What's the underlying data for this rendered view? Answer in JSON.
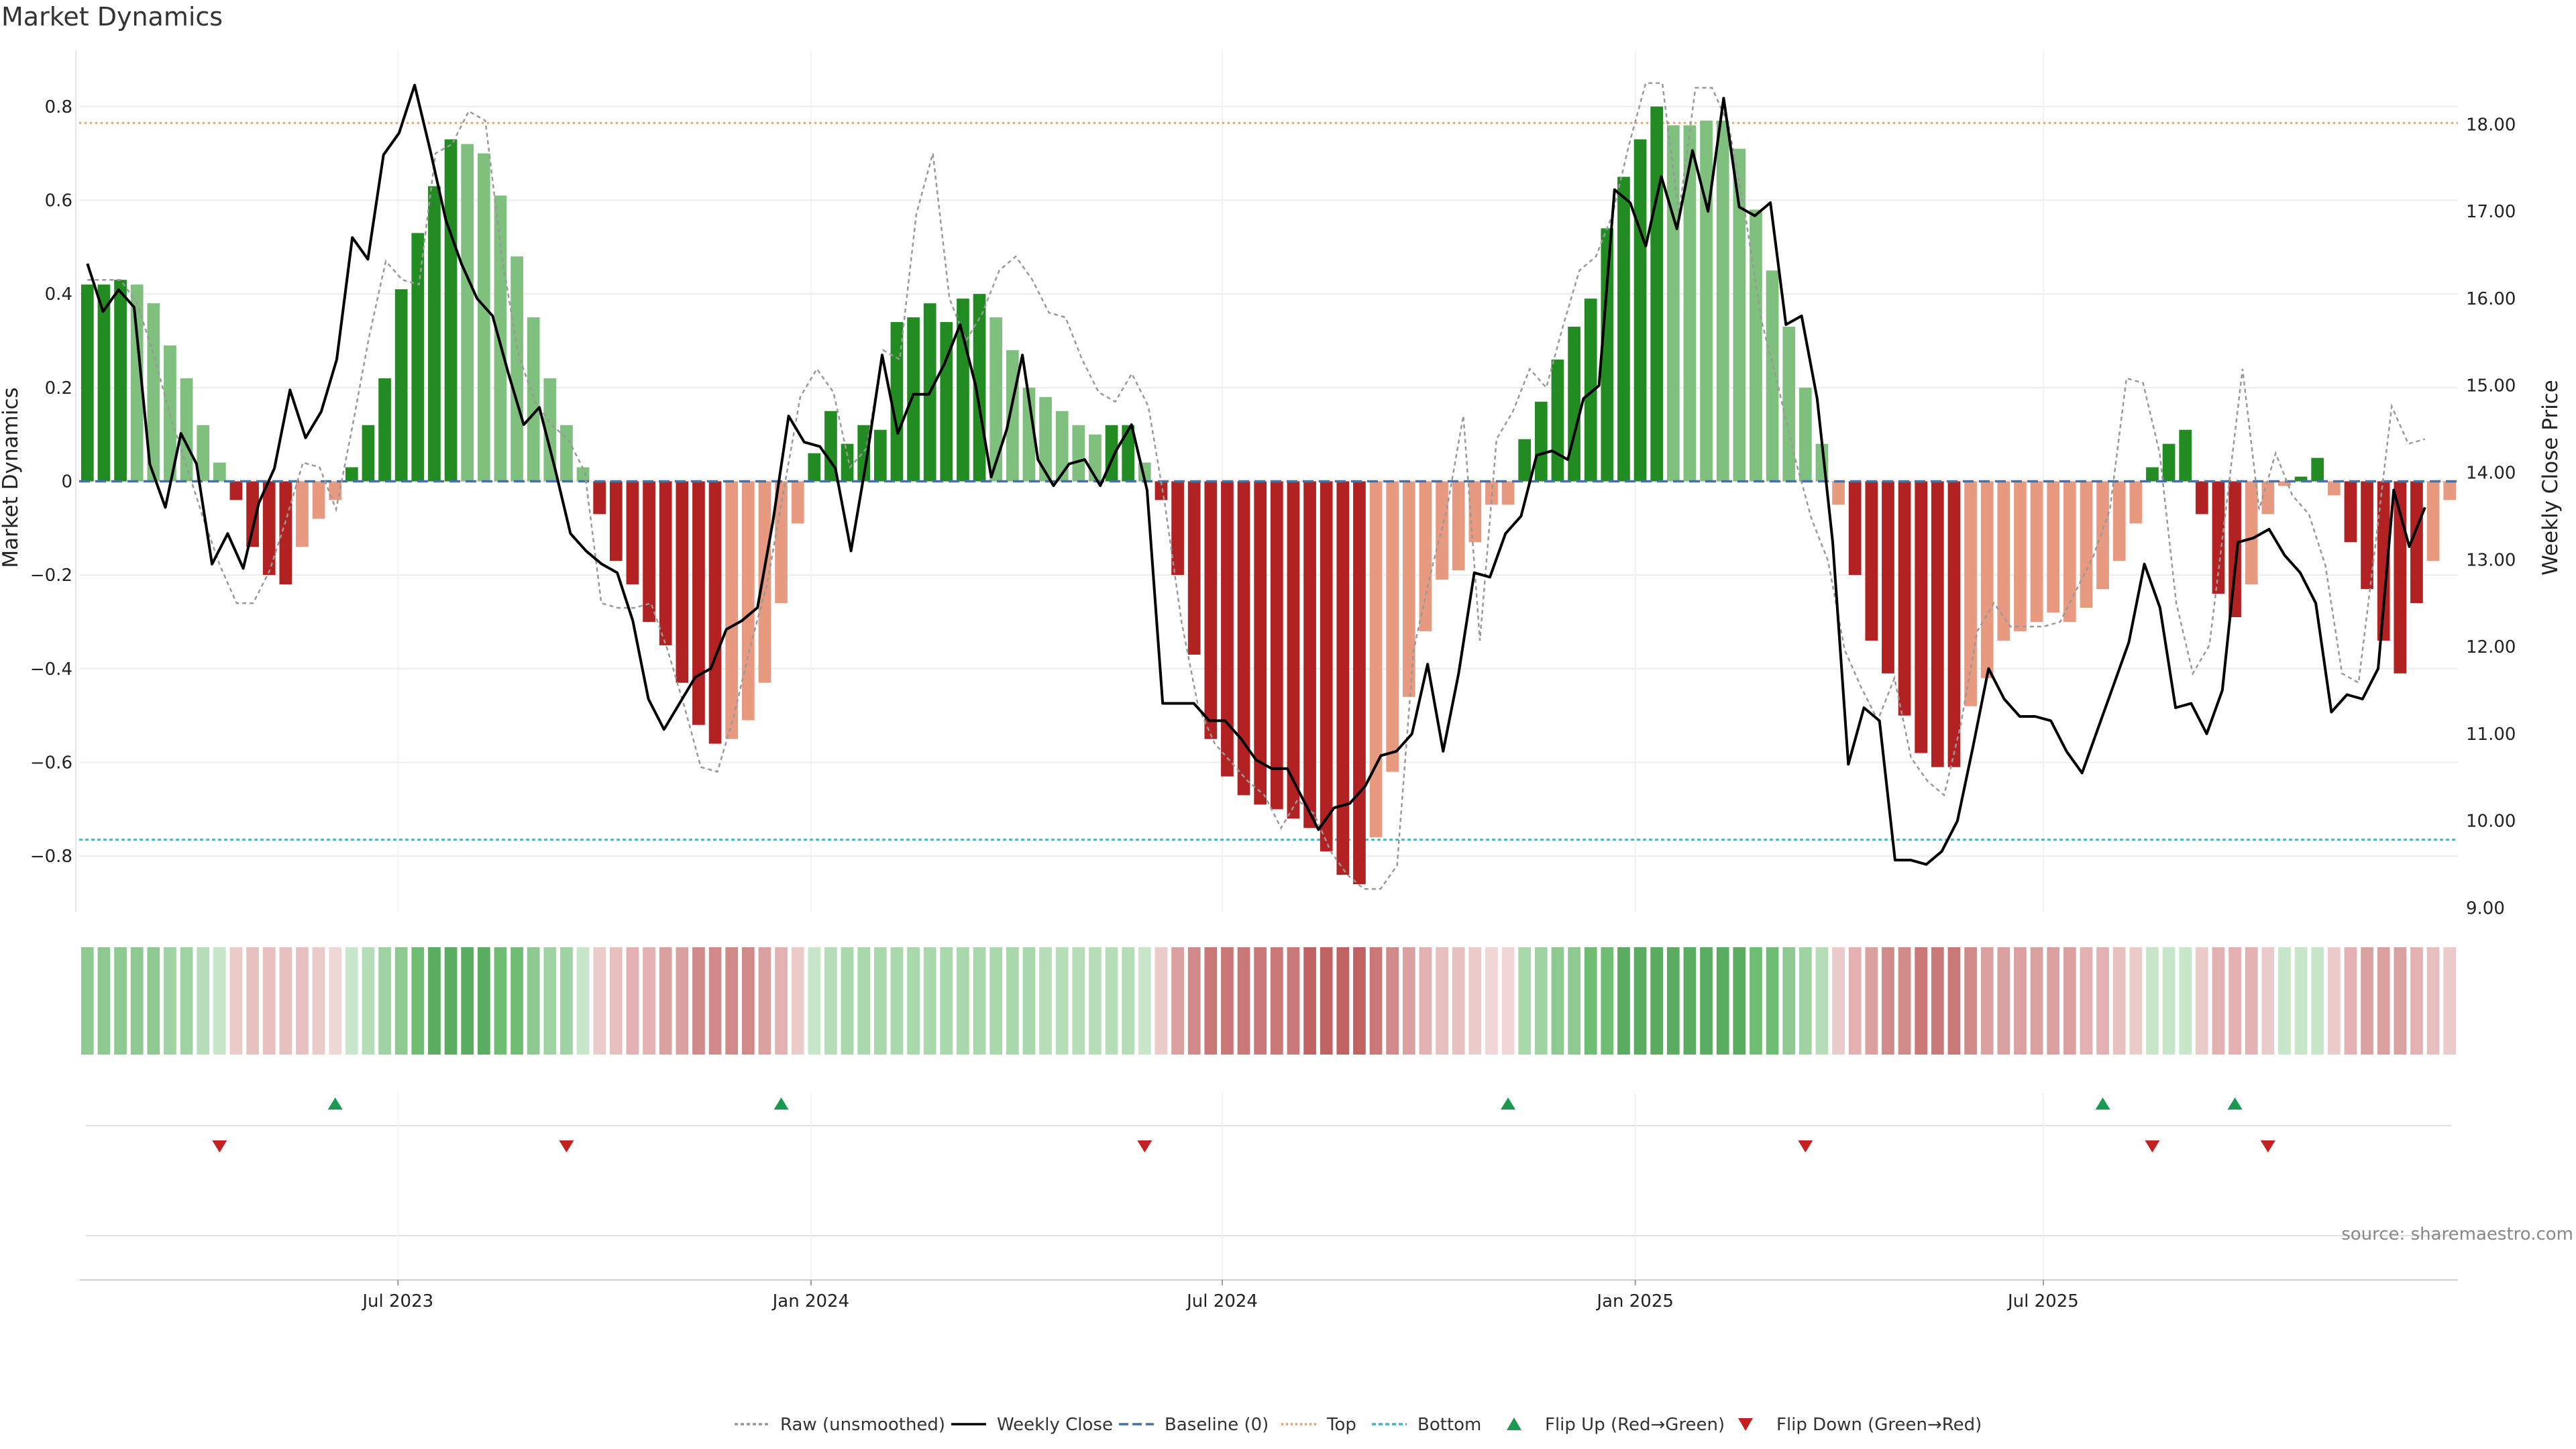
{
  "chart_data": {
    "type": "bar",
    "title": "Market Dynamics",
    "ylabel": "Market Dynamics",
    "y2label": "Weekly Close Price",
    "ylim": [
      -0.92,
      0.92
    ],
    "y2lim": [
      8.95,
      18.85
    ],
    "yticks": [
      "0.8",
      "0.6",
      "0.4",
      "0.2",
      "0",
      "−0.2",
      "−0.4",
      "−0.6",
      "−0.8"
    ],
    "y2ticks": [
      "9.00",
      "10.00",
      "11.00",
      "12.00",
      "13.00",
      "14.00",
      "15.00",
      "16.00",
      "17.00",
      "18.00"
    ],
    "xticks": [
      "Jul 2023",
      "Jan 2024",
      "Jul 2024",
      "Jan 2025",
      "Jul 2025"
    ],
    "top_line": 0.765,
    "bottom_line": -0.765,
    "grid": true,
    "legend_position": "bottom-center",
    "source": "source: sharemaestro.com",
    "colors": {
      "green_strong": "#228b22",
      "green_light": "#7fc07f",
      "red_strong": "#b22222",
      "red_light": "#e89a80",
      "weekly_close": "#000000",
      "raw": "#999999",
      "baseline": "#4472a8",
      "top": "#e8a070",
      "bottom": "#40b8c8",
      "flip_up": "#1a9a50",
      "flip_down": "#c42020"
    },
    "dynamics": [
      0.42,
      0.42,
      0.43,
      0.42,
      0.38,
      0.29,
      0.22,
      0.12,
      0.04,
      -0.04,
      -0.14,
      -0.2,
      -0.22,
      -0.14,
      -0.08,
      -0.04,
      0.03,
      0.12,
      0.22,
      0.41,
      0.53,
      0.63,
      0.73,
      0.72,
      0.7,
      0.61,
      0.48,
      0.35,
      0.22,
      0.12,
      0.03,
      -0.07,
      -0.17,
      -0.22,
      -0.3,
      -0.35,
      -0.43,
      -0.52,
      -0.56,
      -0.55,
      -0.51,
      -0.43,
      -0.26,
      -0.09,
      0.06,
      0.15,
      0.08,
      0.12,
      0.11,
      0.34,
      0.35,
      0.38,
      0.34,
      0.39,
      0.4,
      0.35,
      0.28,
      0.2,
      0.18,
      0.15,
      0.12,
      0.1,
      0.12,
      0.12,
      0.04,
      -0.04,
      -0.2,
      -0.37,
      -0.55,
      -0.63,
      -0.67,
      -0.69,
      -0.7,
      -0.72,
      -0.74,
      -0.79,
      -0.84,
      -0.86,
      -0.76,
      -0.62,
      -0.46,
      -0.32,
      -0.21,
      -0.19,
      -0.13,
      -0.05,
      -0.05,
      0.09,
      0.17,
      0.26,
      0.33,
      0.39,
      0.54,
      0.65,
      0.73,
      0.8,
      0.76,
      0.76,
      0.77,
      0.77,
      0.71,
      0.58,
      0.45,
      0.33,
      0.2,
      0.08,
      -0.05,
      -0.2,
      -0.34,
      -0.41,
      -0.5,
      -0.58,
      -0.61,
      -0.61,
      -0.48,
      -0.42,
      -0.34,
      -0.32,
      -0.3,
      -0.28,
      -0.3,
      -0.27,
      -0.23,
      -0.17,
      -0.09,
      0.03,
      0.08,
      0.11,
      -0.07,
      -0.24,
      -0.29,
      -0.22,
      -0.07,
      -0.01,
      0.01,
      0.05,
      -0.03,
      -0.13,
      -0.23,
      -0.34,
      -0.41,
      -0.26,
      -0.17,
      -0.04
    ],
    "bar_shade": [
      "s",
      "s",
      "s",
      "l",
      "l",
      "l",
      "l",
      "l",
      "l",
      "s",
      "s",
      "s",
      "s",
      "l",
      "l",
      "l",
      "s",
      "s",
      "s",
      "s",
      "s",
      "s",
      "s",
      "l",
      "l",
      "l",
      "l",
      "l",
      "l",
      "l",
      "l",
      "s",
      "s",
      "s",
      "s",
      "s",
      "s",
      "s",
      "s",
      "l",
      "l",
      "l",
      "l",
      "l",
      "s",
      "s",
      "s",
      "s",
      "s",
      "s",
      "s",
      "s",
      "s",
      "s",
      "s",
      "l",
      "l",
      "l",
      "l",
      "l",
      "l",
      "l",
      "s",
      "s",
      "l",
      "s",
      "s",
      "s",
      "s",
      "s",
      "s",
      "s",
      "s",
      "s",
      "s",
      "s",
      "s",
      "s",
      "l",
      "l",
      "l",
      "l",
      "l",
      "l",
      "l",
      "l",
      "l",
      "s",
      "s",
      "s",
      "s",
      "s",
      "s",
      "s",
      "s",
      "s",
      "l",
      "l",
      "l",
      "l",
      "l",
      "l",
      "l",
      "l",
      "l",
      "l",
      "l",
      "s",
      "s",
      "s",
      "s",
      "s",
      "s",
      "s",
      "l",
      "l",
      "l",
      "l",
      "l",
      "l",
      "l",
      "l",
      "l",
      "l",
      "l",
      "s",
      "s",
      "s",
      "s",
      "s",
      "s",
      "l",
      "l",
      "l",
      "s",
      "s",
      "l",
      "s",
      "s",
      "s",
      "s",
      "s",
      "l",
      "l"
    ],
    "raw": [
      0.43,
      0.43,
      0.43,
      0.38,
      0.27,
      0.14,
      0.03,
      -0.08,
      -0.18,
      -0.26,
      -0.26,
      -0.19,
      -0.08,
      0.04,
      0.03,
      -0.06,
      0.12,
      0.31,
      0.47,
      0.43,
      0.42,
      0.7,
      0.72,
      0.79,
      0.77,
      0.48,
      0.27,
      0.17,
      0.12,
      0.09,
      0.02,
      -0.26,
      -0.27,
      -0.27,
      -0.26,
      -0.36,
      -0.48,
      -0.61,
      -0.62,
      -0.5,
      -0.35,
      -0.22,
      -0.02,
      0.18,
      0.24,
      0.19,
      0.03,
      0.07,
      0.28,
      0.26,
      0.57,
      0.7,
      0.39,
      0.3,
      0.36,
      0.45,
      0.48,
      0.43,
      0.36,
      0.35,
      0.26,
      0.19,
      0.17,
      0.23,
      0.16,
      -0.05,
      -0.3,
      -0.48,
      -0.56,
      -0.6,
      -0.64,
      -0.67,
      -0.74,
      -0.68,
      -0.71,
      -0.79,
      -0.84,
      -0.87,
      -0.87,
      -0.82,
      -0.36,
      -0.2,
      -0.06,
      0.14,
      -0.34,
      0.09,
      0.15,
      0.24,
      0.2,
      0.33,
      0.45,
      0.48,
      0.57,
      0.72,
      0.85,
      0.85,
      0.57,
      0.84,
      0.84,
      0.76,
      0.57,
      0.34,
      0.2,
      0.05,
      -0.08,
      -0.17,
      -0.36,
      -0.44,
      -0.51,
      -0.42,
      -0.59,
      -0.64,
      -0.67,
      -0.52,
      -0.32,
      -0.26,
      -0.31,
      -0.31,
      -0.31,
      -0.3,
      -0.23,
      -0.16,
      -0.06,
      0.22,
      0.21,
      0.06,
      -0.26,
      -0.41,
      -0.35,
      -0.06,
      0.24,
      -0.06,
      0.06,
      -0.03,
      -0.07,
      -0.18,
      -0.41,
      -0.43,
      -0.14,
      0.16,
      0.08,
      0.09
    ],
    "weekly_close": [
      16.4,
      15.85,
      16.1,
      15.9,
      14.1,
      13.6,
      14.45,
      14.1,
      12.95,
      13.3,
      12.9,
      13.65,
      14.05,
      14.95,
      14.4,
      14.7,
      15.3,
      16.7,
      16.45,
      17.65,
      17.9,
      18.45,
      17.7,
      16.9,
      16.4,
      16.0,
      15.8,
      15.15,
      14.55,
      14.75,
      14.05,
      13.3,
      13.1,
      12.95,
      12.85,
      12.3,
      11.4,
      11.05,
      11.35,
      11.65,
      11.75,
      12.2,
      12.3,
      12.45,
      13.45,
      14.65,
      14.35,
      14.3,
      14.05,
      13.1,
      14.15,
      15.35,
      14.45,
      14.9,
      14.9,
      15.25,
      15.7,
      15.0,
      13.95,
      14.5,
      15.35,
      14.15,
      13.85,
      14.1,
      14.15,
      13.85,
      14.25,
      14.55,
      13.8,
      11.35,
      11.35,
      11.35,
      11.15,
      11.15,
      10.95,
      10.7,
      10.6,
      10.6,
      10.25,
      9.9,
      10.15,
      10.2,
      10.4,
      10.75,
      10.8,
      11.0,
      11.8,
      10.8,
      11.7,
      12.85,
      12.8,
      13.3,
      13.5,
      14.2,
      14.25,
      14.15,
      14.85,
      15.0,
      17.25,
      17.1,
      16.6,
      17.4,
      16.8,
      17.7,
      17.0,
      18.3,
      17.05,
      16.95,
      17.1,
      15.7,
      15.8,
      14.85,
      13.2,
      10.65,
      11.3,
      11.15,
      9.55,
      9.55,
      9.5,
      9.65,
      10.0,
      10.85,
      11.75,
      11.4,
      11.2,
      11.2,
      11.15,
      10.8,
      10.55,
      11.05,
      11.55,
      12.05,
      12.95,
      12.45,
      11.3,
      11.35,
      11.0,
      11.5,
      13.2,
      13.25,
      13.35,
      13.05,
      12.85,
      12.5,
      11.25,
      11.45,
      11.4,
      11.75,
      13.8,
      13.15,
      13.6
    ],
    "raw_weekly_close_x_range": [
      0.5,
      142
    ],
    "strip_colors": [
      "#8dc990",
      "#8dc990",
      "#8dc990",
      "#8dc990",
      "#8dc990",
      "#a0d3a3",
      "#a0d3a3",
      "#b5deb8",
      "#c8e7ca",
      "#ebcaca",
      "#e8bfbf",
      "#e8bfbf",
      "#e8bfbf",
      "#e8bfbf",
      "#ebcaca",
      "#f0d6d6",
      "#c8e7ca",
      "#b5deb8",
      "#a0d3a3",
      "#8dc990",
      "#6ebd73",
      "#5aad60",
      "#5aad60",
      "#5aad60",
      "#5aad60",
      "#6ebd73",
      "#6ebd73",
      "#8dc990",
      "#a0d3a3",
      "#a0d3a3",
      "#c8e7ca",
      "#ebcaca",
      "#e8bfbf",
      "#e3b1b1",
      "#e3b1b1",
      "#dba1a1",
      "#dba1a1",
      "#d08a8a",
      "#d08a8a",
      "#d08a8a",
      "#d08a8a",
      "#dba1a1",
      "#e3b1b1",
      "#ebcaca",
      "#c8e7ca",
      "#b5deb8",
      "#a8d8ab",
      "#a8d8ab",
      "#a8d8ab",
      "#a8d8ab",
      "#a8d8ab",
      "#a8d8ab",
      "#a8d8ab",
      "#a8d8ab",
      "#a8d8ab",
      "#a8d8ab",
      "#a8d8ab",
      "#a8d8ab",
      "#b5deb8",
      "#b5deb8",
      "#b5deb8",
      "#b5deb8",
      "#b5deb8",
      "#b5deb8",
      "#c8e7ca",
      "#ebcaca",
      "#dba1a1",
      "#d08a8a",
      "#c97777",
      "#c97777",
      "#c97777",
      "#c97777",
      "#c97777",
      "#c97777",
      "#c06262",
      "#c06262",
      "#c06262",
      "#c06262",
      "#c97777",
      "#d08a8a",
      "#dba1a1",
      "#e3b1b1",
      "#e8bfbf",
      "#e8bfbf",
      "#ebcaca",
      "#f0d6d6",
      "#f0d6d6",
      "#a8d8ab",
      "#a0d3a3",
      "#8dc990",
      "#8dc990",
      "#6ebd73",
      "#6ebd73",
      "#5aad60",
      "#5aad60",
      "#5aad60",
      "#5aad60",
      "#5aad60",
      "#5aad60",
      "#5aad60",
      "#5aad60",
      "#6ebd73",
      "#6ebd73",
      "#8dc990",
      "#a0d3a3",
      "#b5deb8",
      "#ebcaca",
      "#e3b1b1",
      "#dba1a1",
      "#d08a8a",
      "#d08a8a",
      "#c97777",
      "#c97777",
      "#c97777",
      "#d08a8a",
      "#dba1a1",
      "#dba1a1",
      "#dba1a1",
      "#dba1a1",
      "#dba1a1",
      "#dba1a1",
      "#e3b1b1",
      "#e3b1b1",
      "#e8bfbf",
      "#ebcaca",
      "#c8e7ca",
      "#c8e7ca",
      "#c8e7ca",
      "#ebcaca",
      "#e3b1b1",
      "#e3b1b1",
      "#e3b1b1",
      "#ebcaca",
      "#c8e7ca",
      "#c8e7ca",
      "#c8e7ca",
      "#ebcaca",
      "#e3b1b1",
      "#dba1a1",
      "#dba1a1",
      "#dba1a1",
      "#e3b1b1",
      "#e8bfbf",
      "#ebcaca"
    ],
    "flips_up": [
      15,
      42,
      86,
      122,
      130
    ],
    "flips_down": [
      8,
      29,
      64,
      104,
      125,
      132
    ],
    "xtick_positions": [
      19.3,
      44.3,
      69.2,
      94.2,
      118.9
    ],
    "legend": [
      "Raw (unsmoothed)",
      "Weekly Close",
      "Baseline (0)",
      "Top",
      "Bottom",
      "Flip Up (Red→Green)",
      "Flip Down (Green→Red)"
    ]
  }
}
